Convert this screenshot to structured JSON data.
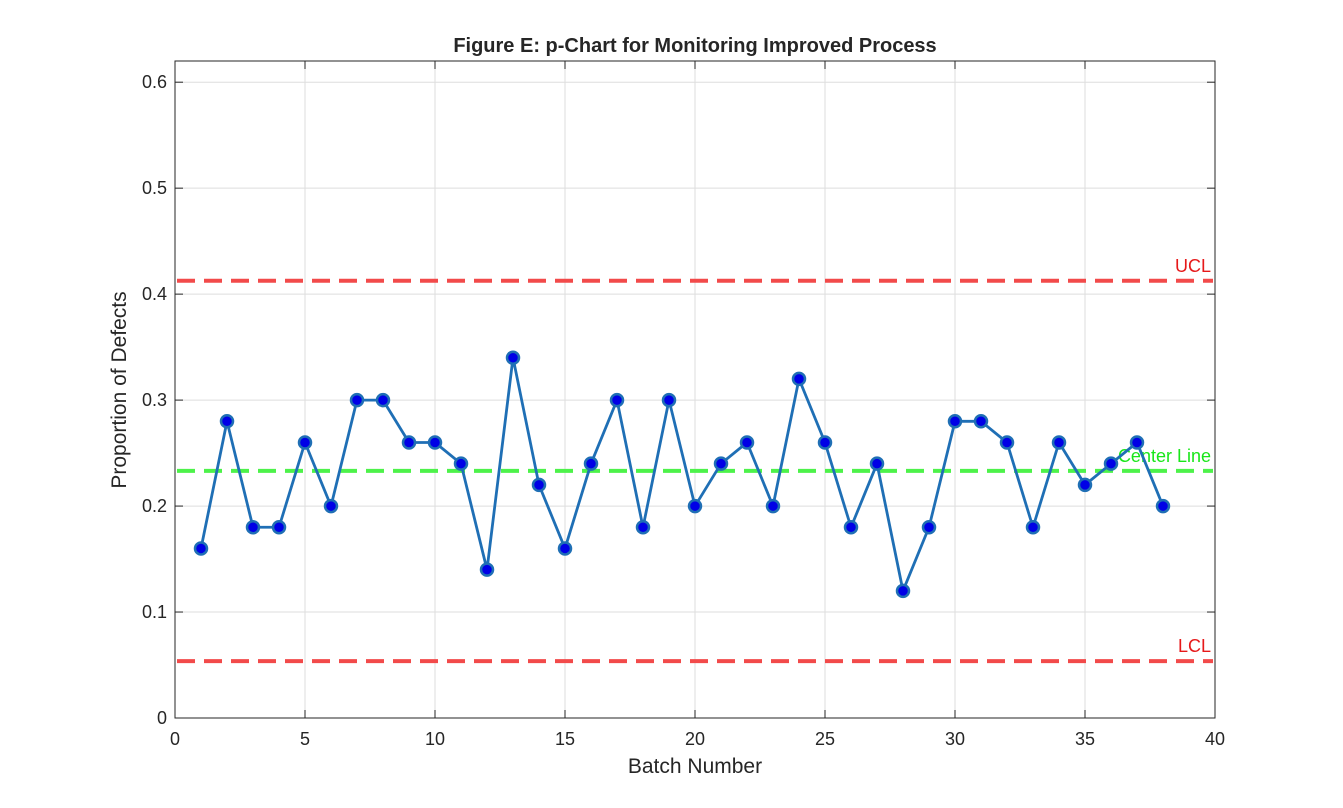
{
  "chart_data": {
    "type": "line",
    "title": "Figure E: p-Chart for Monitoring Improved Process",
    "xlabel": "Batch Number",
    "ylabel": "Proportion of Defects",
    "xlim": [
      0,
      40
    ],
    "ylim": [
      0,
      0.62
    ],
    "xticks": [
      0,
      5,
      10,
      15,
      20,
      25,
      30,
      35,
      40
    ],
    "yticks": [
      0,
      0.1,
      0.2,
      0.3,
      0.4,
      0.5,
      0.6
    ],
    "xtick_labels": [
      "0",
      "5",
      "10",
      "15",
      "20",
      "25",
      "30",
      "35",
      "40"
    ],
    "ytick_labels": [
      "0",
      "0.1",
      "0.2",
      "0.3",
      "0.4",
      "0.5",
      "0.6"
    ],
    "grid": true,
    "series": [
      {
        "x": [
          1,
          2,
          3,
          4,
          5,
          6,
          7,
          8,
          9,
          10,
          11,
          12,
          13,
          14,
          15,
          16,
          17,
          18,
          19,
          20,
          21,
          22,
          23,
          24,
          25,
          26,
          27,
          28,
          29,
          30,
          31,
          32,
          33,
          34,
          35,
          36,
          37,
          38
        ],
        "values": [
          0.16,
          0.28,
          0.18,
          0.18,
          0.26,
          0.2,
          0.3,
          0.3,
          0.26,
          0.26,
          0.24,
          0.14,
          0.34,
          0.22,
          0.16,
          0.24,
          0.3,
          0.18,
          0.3,
          0.2,
          0.24,
          0.26,
          0.2,
          0.32,
          0.26,
          0.18,
          0.24,
          0.12,
          0.18,
          0.28,
          0.28,
          0.26,
          0.18,
          0.26,
          0.22,
          0.24,
          0.26,
          0.2
        ],
        "line_color": "#1f6fb5",
        "marker_fill": "#0000e6",
        "marker_edge": "#1f6fb5"
      }
    ],
    "reference_lines": [
      {
        "label": "UCL",
        "value": 0.4126,
        "color": "#f24a4a",
        "label_color": "#e6191a"
      },
      {
        "label": "Center Line",
        "value": 0.2332,
        "color": "#4df24a",
        "label_color": "#19e619"
      },
      {
        "label": "LCL",
        "value": 0.0537,
        "color": "#f24a4a",
        "label_color": "#e6191a"
      }
    ]
  }
}
